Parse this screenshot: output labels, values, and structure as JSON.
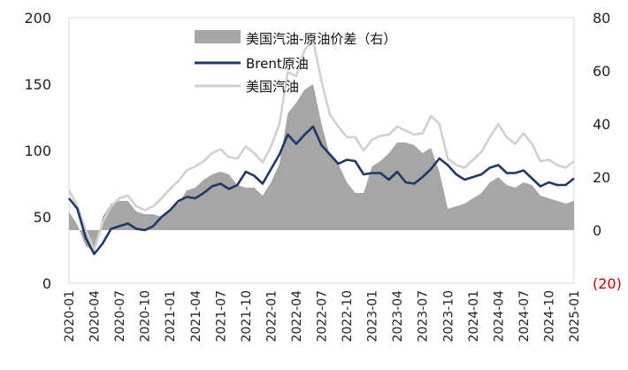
{
  "chart_data": {
    "type": "line",
    "title": "",
    "xlabel": "",
    "ylabel": "",
    "ylim_left": [
      0,
      200
    ],
    "ylim_right": [
      -20,
      80
    ],
    "left_ticks": [
      "0",
      "50",
      "100",
      "150",
      "200"
    ],
    "right_ticks": [
      "(20)",
      "0",
      "20",
      "40",
      "60",
      "80"
    ],
    "x_ticks": [
      "2020-01",
      "2020-04",
      "2020-07",
      "2020-10",
      "2021-01",
      "2021-04",
      "2021-07",
      "2021-10",
      "2022-01",
      "2022-04",
      "2022-07",
      "2022-10",
      "2023-01",
      "2023-04",
      "2023-07",
      "2023-10",
      "2024-01",
      "2024-04",
      "2024-07",
      "2024-10",
      "2025-01"
    ],
    "legend_position": "top-center",
    "grid": false,
    "x": [
      "2020-01",
      "2020-02",
      "2020-03",
      "2020-04",
      "2020-05",
      "2020-06",
      "2020-07",
      "2020-08",
      "2020-09",
      "2020-10",
      "2020-11",
      "2020-12",
      "2021-01",
      "2021-02",
      "2021-03",
      "2021-04",
      "2021-05",
      "2021-06",
      "2021-07",
      "2021-08",
      "2021-09",
      "2021-10",
      "2021-11",
      "2021-12",
      "2022-01",
      "2022-02",
      "2022-03",
      "2022-04",
      "2022-05",
      "2022-06",
      "2022-07",
      "2022-08",
      "2022-09",
      "2022-10",
      "2022-11",
      "2022-12",
      "2023-01",
      "2023-02",
      "2023-03",
      "2023-04",
      "2023-05",
      "2023-06",
      "2023-07",
      "2023-08",
      "2023-09",
      "2023-10",
      "2023-11",
      "2023-12",
      "2024-01",
      "2024-02",
      "2024-03",
      "2024-04",
      "2024-05",
      "2024-06",
      "2024-07",
      "2024-08",
      "2024-09",
      "2024-10",
      "2024-11",
      "2024-12",
      "2025-01"
    ],
    "series": [
      {
        "name": "美国汽油-原油价差（右）",
        "kind": "area",
        "axis": "right",
        "color": "#a6a6a6",
        "values": [
          7,
          2,
          -6,
          -8,
          5,
          10,
          11,
          11,
          7,
          6,
          6,
          5,
          8,
          10,
          15,
          16,
          19,
          21,
          22,
          21,
          17,
          16,
          16,
          13,
          18,
          25,
          44,
          48,
          53,
          55,
          40,
          28,
          25,
          18,
          14,
          14,
          24,
          26,
          29,
          33,
          33,
          32,
          29,
          31,
          22,
          8,
          9,
          10,
          12,
          14,
          18,
          20,
          17,
          16,
          18,
          17,
          13,
          12,
          11,
          10,
          11
        ]
      },
      {
        "name": "Brent原油",
        "kind": "line",
        "axis": "left",
        "color": "#1f3864",
        "values": [
          64,
          56,
          34,
          22,
          30,
          41,
          43,
          45,
          41,
          40,
          43,
          50,
          55,
          62,
          65,
          64,
          68,
          73,
          75,
          71,
          74,
          84,
          81,
          75,
          86,
          97,
          112,
          105,
          112,
          118,
          104,
          97,
          90,
          93,
          92,
          82,
          83,
          83,
          78,
          84,
          76,
          75,
          80,
          86,
          94,
          89,
          82,
          78,
          80,
          82,
          87,
          89,
          83,
          83,
          85,
          79,
          73,
          76,
          74,
          74,
          79
        ]
      },
      {
        "name": "美国汽油",
        "kind": "line",
        "axis": "left",
        "color": "#d0d0d0",
        "values": [
          70,
          58,
          40,
          25,
          46,
          58,
          64,
          66,
          58,
          55,
          58,
          64,
          71,
          77,
          85,
          88,
          92,
          98,
          101,
          95,
          94,
          103,
          98,
          91,
          103,
          120,
          159,
          156,
          176,
          183,
          152,
          127,
          118,
          110,
          110,
          100,
          108,
          111,
          112,
          118,
          115,
          112,
          113,
          126,
          120,
          94,
          89,
          87,
          93,
          99,
          110,
          120,
          110,
          105,
          113,
          105,
          92,
          93,
          89,
          87,
          92
        ]
      }
    ]
  }
}
